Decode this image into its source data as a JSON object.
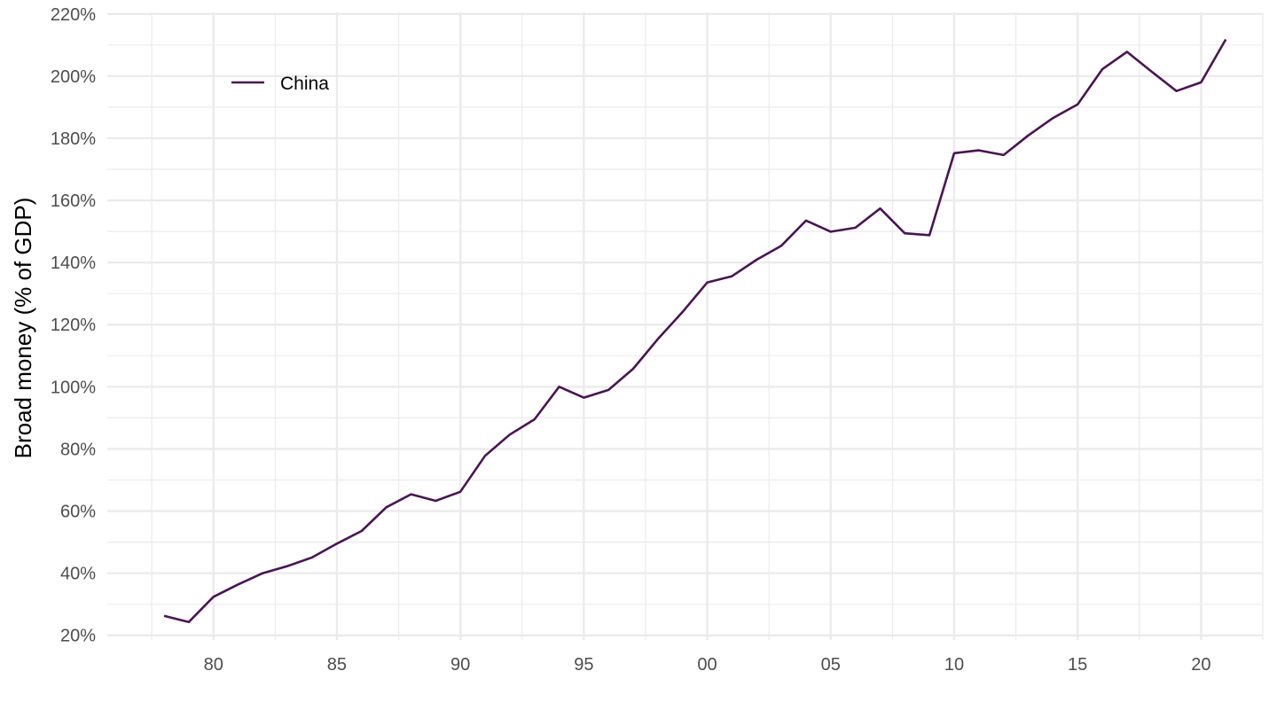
{
  "chart_data": {
    "type": "line",
    "title": "",
    "xlabel": "",
    "ylabel": "Broad money (% of GDP)",
    "x_unit": "year",
    "xlim": [
      1975.7,
      2022.5
    ],
    "ylim": [
      18.5,
      220.5
    ],
    "x_ticks": [
      1980,
      1985,
      1990,
      1995,
      2000,
      2005,
      2010,
      2015,
      2020
    ],
    "x_tick_labels": [
      "80",
      "85",
      "90",
      "95",
      "00",
      "05",
      "10",
      "15",
      "20"
    ],
    "x_minor_ticks": [
      1977.5,
      1982.5,
      1987.5,
      1992.5,
      1997.5,
      2002.5,
      2007.5,
      2012.5,
      2017.5,
      2022.5
    ],
    "y_ticks": [
      20,
      40,
      60,
      80,
      100,
      120,
      140,
      160,
      180,
      200,
      220
    ],
    "y_tick_labels": [
      "20%",
      "40%",
      "60%",
      "80%",
      "100%",
      "120%",
      "140%",
      "160%",
      "180%",
      "200%",
      "220%"
    ],
    "y_minor_ticks": [
      30,
      50,
      70,
      90,
      110,
      130,
      150,
      170,
      190,
      210
    ],
    "grid": true,
    "legend_position": "top-left",
    "series": [
      {
        "name": "China",
        "color": "#4a1454",
        "x": [
          1978,
          1979,
          1980,
          1981,
          1982,
          1983,
          1984,
          1985,
          1986,
          1987,
          1988,
          1989,
          1990,
          1991,
          1992,
          1993,
          1994,
          1995,
          1996,
          1997,
          1998,
          1999,
          2000,
          2001,
          2002,
          2003,
          2004,
          2005,
          2006,
          2007,
          2008,
          2009,
          2010,
          2011,
          2012,
          2013,
          2014,
          2015,
          2016,
          2017,
          2018,
          2019,
          2020,
          2021
        ],
        "values": [
          26.3,
          24.3,
          32.4,
          36.4,
          40.0,
          42.3,
          45.1,
          49.5,
          53.6,
          61.2,
          65.4,
          63.3,
          66.2,
          77.8,
          84.6,
          89.5,
          100.0,
          96.5,
          99.0,
          105.8,
          115.4,
          124.1,
          133.6,
          135.6,
          140.9,
          145.4,
          153.5,
          149.9,
          151.2,
          157.4,
          149.4,
          148.8,
          175.2,
          176.1,
          174.6,
          180.9,
          186.5,
          190.9,
          202.2,
          207.8,
          201.4,
          195.2,
          198.0,
          211.8
        ]
      }
    ]
  }
}
